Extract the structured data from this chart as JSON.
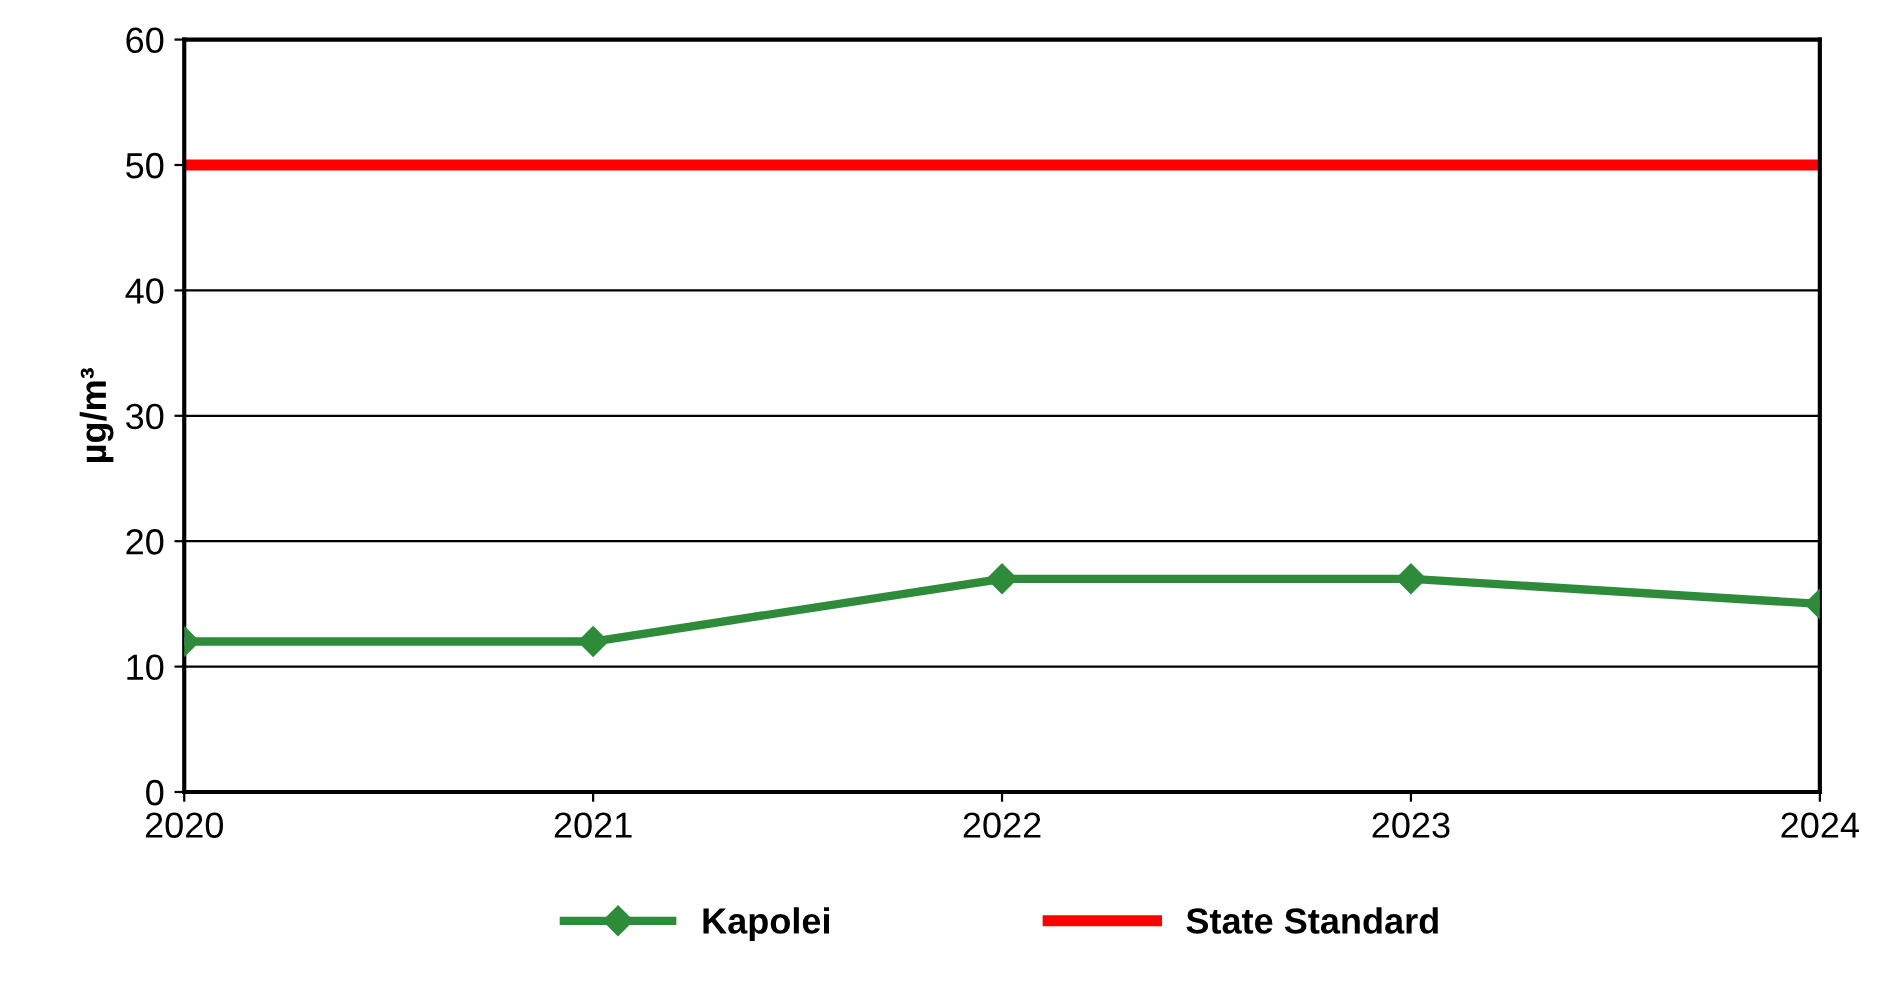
{
  "chart_data": {
    "type": "line",
    "ylabel": "µg/m³",
    "x": [
      2020,
      2021,
      2022,
      2023,
      2024
    ],
    "series": [
      {
        "name": "Kapolei",
        "color": "#2e8b3a",
        "values": [
          12,
          12,
          17,
          17,
          15
        ],
        "marker": "diamond"
      },
      {
        "name": "State Standard",
        "color": "#ff0000",
        "values": [
          50,
          50,
          50,
          50,
          50
        ],
        "marker": "none"
      }
    ],
    "xlim": [
      2020,
      2024
    ],
    "xticks": [
      2020,
      2021,
      2022,
      2023,
      2024
    ],
    "ylim": [
      0,
      60
    ],
    "yticks": [
      0,
      10,
      20,
      30,
      40,
      50,
      60
    ],
    "grid": "y",
    "legend": "bottom",
    "line_style": "solid"
  }
}
